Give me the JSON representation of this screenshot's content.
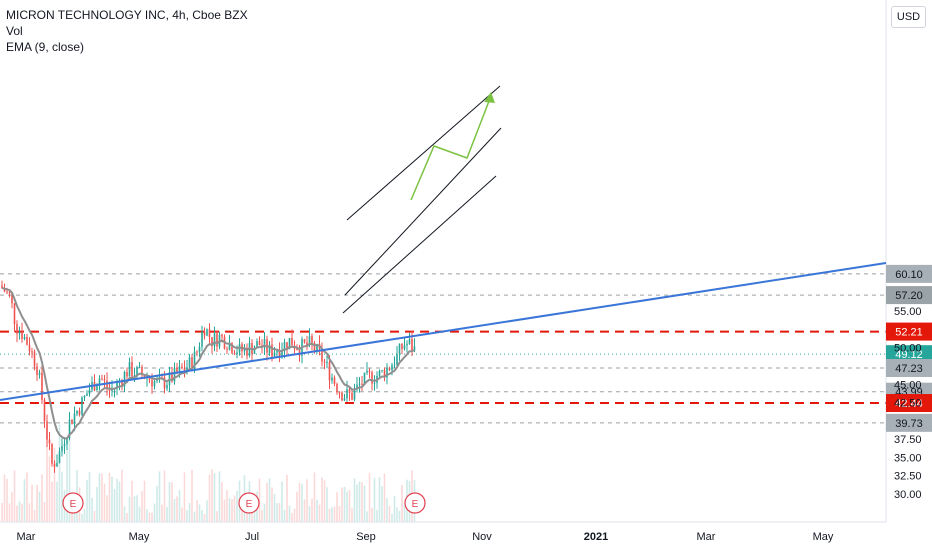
{
  "legend": {
    "title": "MICRON TECHNOLOGY INC, 4h, Cboe BZX",
    "line2": "Vol",
    "line3": "EMA (9, close)"
  },
  "currency": "USD",
  "chart_data": {
    "type": "candlestick",
    "y_ticks": [
      30.0,
      32.5,
      35.0,
      37.5,
      42.5,
      45.0,
      50.0,
      55.0
    ],
    "y_tick_labels": [
      "30.00",
      "32.50",
      "35.00",
      "37.50",
      "42.50",
      "45.00",
      "50.00",
      "55.00"
    ],
    "x_ticks": [
      {
        "label": "Mar",
        "bold": false
      },
      {
        "label": "May",
        "bold": false
      },
      {
        "label": "Jul",
        "bold": false
      },
      {
        "label": "Sep",
        "bold": false
      },
      {
        "label": "Nov",
        "bold": false
      },
      {
        "label": "2021",
        "bold": true
      },
      {
        "label": "Mar",
        "bold": false
      },
      {
        "label": "May",
        "bold": false
      }
    ],
    "horizontal_levels": [
      {
        "value": 60.1,
        "label": "60.10",
        "style": "gray",
        "tag": "#a6b0b6"
      },
      {
        "value": 57.2,
        "label": "57.20",
        "style": "gray",
        "tag": "#9aa3a8"
      },
      {
        "value": 52.21,
        "label": "52.21",
        "style": "red",
        "tag": "#e3170a"
      },
      {
        "value": 49.12,
        "label": "49.12",
        "style": "teal",
        "tag": "#26a69a"
      },
      {
        "value": 47.23,
        "label": "47.23",
        "style": "gray",
        "tag": "#a6b0b6"
      },
      {
        "value": 43.99,
        "label": "43.99",
        "style": "gray",
        "tag": "#a6b0b6"
      },
      {
        "value": 42.44,
        "label": "42.44",
        "style": "red",
        "tag": "#e3170a"
      },
      {
        "value": 39.73,
        "label": "39.73",
        "style": "gray",
        "tag": "#a6b0b6"
      }
    ],
    "earnings_markers": [
      {
        "label": "E"
      },
      {
        "label": "E"
      },
      {
        "label": "E"
      }
    ],
    "series": [
      {
        "name": "EMA (9, close)",
        "color": "#909090"
      }
    ],
    "colors": {
      "up": "#26a69a",
      "down": "#ef5350",
      "trendline": "#3a75d8",
      "projection": "#7cc242"
    }
  }
}
